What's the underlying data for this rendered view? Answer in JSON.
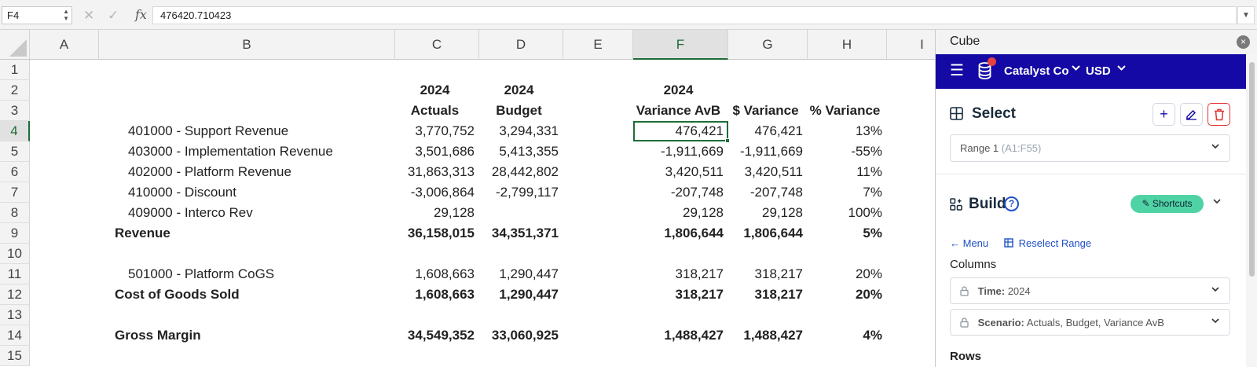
{
  "formula_bar": {
    "name_box": "F4",
    "cancel_icon": "✕",
    "enter_icon": "✓",
    "fx_label": "fx",
    "formula": "476420.710423"
  },
  "sheet": {
    "columns": [
      "A",
      "B",
      "C",
      "D",
      "E",
      "F",
      "G",
      "H",
      "I"
    ],
    "selected_column": "F",
    "rows": [
      "1",
      "2",
      "3",
      "4",
      "5",
      "6",
      "7",
      "8",
      "9",
      "10",
      "11",
      "12",
      "13",
      "14",
      "15"
    ],
    "selected_row": "4",
    "header_row2": {
      "c": "2024",
      "d": "2024",
      "f": "2024"
    },
    "header_row3": {
      "c": "Actuals",
      "d": "Budget",
      "f": "Variance AvB",
      "g": "$ Variance",
      "h": "% Variance"
    },
    "data": [
      {
        "b": "401000 - Support Revenue",
        "c": "3,770,752",
        "d": "3,294,331",
        "f": "476,421",
        "g": "476,421",
        "h": "13%",
        "bold": false
      },
      {
        "b": "403000 - Implementation Revenue",
        "c": "3,501,686",
        "d": "5,413,355",
        "f": "-1,911,669",
        "g": "-1,911,669",
        "h": "-55%",
        "bold": false
      },
      {
        "b": "402000 - Platform Revenue",
        "c": "31,863,313",
        "d": "28,442,802",
        "f": "3,420,511",
        "g": "3,420,511",
        "h": "11%",
        "bold": false
      },
      {
        "b": "410000 - Discount",
        "c": "-3,006,864",
        "d": "-2,799,117",
        "f": "-207,748",
        "g": "-207,748",
        "h": "7%",
        "bold": false
      },
      {
        "b": "409000 - Interco Rev",
        "c": "29,128",
        "d": "",
        "f": "29,128",
        "g": "29,128",
        "h": "100%",
        "bold": false
      },
      {
        "b": "Revenue",
        "c": "36,158,015",
        "d": "34,351,371",
        "f": "1,806,644",
        "g": "1,806,644",
        "h": "5%",
        "bold": true
      },
      {
        "b": "",
        "c": "",
        "d": "",
        "f": "",
        "g": "",
        "h": "",
        "bold": false
      },
      {
        "b": "501000 - Platform CoGS",
        "c": "1,608,663",
        "d": "1,290,447",
        "f": "318,217",
        "g": "318,217",
        "h": "20%",
        "bold": false
      },
      {
        "b": "Cost of Goods Sold",
        "c": "1,608,663",
        "d": "1,290,447",
        "f": "318,217",
        "g": "318,217",
        "h": "20%",
        "bold": true
      },
      {
        "b": "",
        "c": "",
        "d": "",
        "f": "",
        "g": "",
        "h": "",
        "bold": false
      },
      {
        "b": "Gross Margin",
        "c": "34,549,352",
        "d": "33,060,925",
        "f": "1,488,427",
        "g": "1,488,427",
        "h": "4%",
        "bold": true
      },
      {
        "b": "",
        "c": "",
        "d": "",
        "f": "",
        "g": "",
        "h": "",
        "bold": false
      }
    ]
  },
  "panel": {
    "title": "Cube",
    "close_icon": "×",
    "nav": {
      "company": "Catalyst Co",
      "currency": "USD",
      "chevron": "⌄"
    },
    "select": {
      "heading": "Select",
      "add_icon": "+",
      "range_name": "Range 1",
      "range_ref": "(A1:F55)"
    },
    "build": {
      "heading": "Build",
      "help_icon": "?",
      "shortcuts_label": "Shortcuts",
      "menu_link": "Menu",
      "reselect_link": "Reselect Range",
      "columns_label": "Columns",
      "time_label": "Time:",
      "time_value": "2024",
      "scenario_label": "Scenario:",
      "scenario_value": "Actuals, Budget, Variance AvB",
      "rows_label": "Rows"
    },
    "colors": {
      "nav_bg": "#1409a4",
      "accent_green": "#1e6d37",
      "shortcuts_bg": "#4fd3a5",
      "delete_red": "#e0322e",
      "link_blue": "#1f4fc8"
    }
  }
}
